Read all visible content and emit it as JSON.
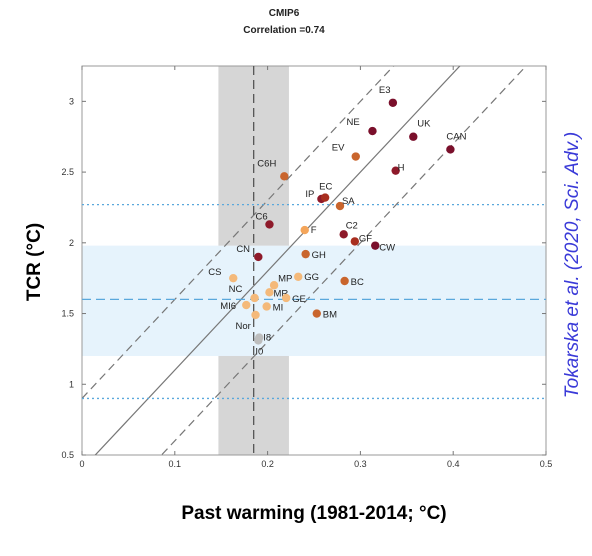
{
  "chart_data": {
    "type": "scatter",
    "title": "CMIP6",
    "subtitle": "Correlation =0.74",
    "xlabel": "Past warming (1981-2014; °C)",
    "ylabel": "TCR (°C)",
    "credit": "Tokarska et al. (2020, Sci. Adv.)",
    "xlim": [
      0,
      0.5
    ],
    "ylim": [
      0.5,
      3.25
    ],
    "xticks": [
      "0",
      "0.1",
      "0.2",
      "0.3",
      "0.4",
      "0.5"
    ],
    "yticks": [
      "0.5",
      "1",
      "1.5",
      "2",
      "2.5",
      "3"
    ],
    "observed_range_x": [
      0.147,
      0.223
    ],
    "observed_best_x": 0.185,
    "constrained_range_y": [
      1.2,
      1.98
    ],
    "constrained_best_y": 1.6,
    "dotted_lines_y": [
      0.9,
      2.27
    ],
    "regression": {
      "x0": 0.0,
      "y0": 0.9,
      "slope": 7.0,
      "offset": 0.5
    },
    "points": [
      {
        "label": "E3",
        "x": 0.335,
        "y": 2.99,
        "color": "#7a0f2b"
      },
      {
        "label": "NE",
        "x": 0.313,
        "y": 2.79,
        "color": "#7a0f2b"
      },
      {
        "label": "UK",
        "x": 0.357,
        "y": 2.75,
        "color": "#7a0f2b"
      },
      {
        "label": "CAN",
        "x": 0.397,
        "y": 2.66,
        "color": "#7a0f2b"
      },
      {
        "label": "EV",
        "x": 0.295,
        "y": 2.61,
        "color": "#c9652d"
      },
      {
        "label": "H",
        "x": 0.338,
        "y": 2.51,
        "color": "#8e1a2a"
      },
      {
        "label": "C6H",
        "x": 0.218,
        "y": 2.47,
        "color": "#c9652d"
      },
      {
        "label": "IP",
        "x": 0.258,
        "y": 2.31,
        "color": "#8e1a2a"
      },
      {
        "label": "EC",
        "x": 0.262,
        "y": 2.32,
        "color": "#a82e1f"
      },
      {
        "label": "SA",
        "x": 0.278,
        "y": 2.26,
        "color": "#c9652d"
      },
      {
        "label": "C6",
        "x": 0.202,
        "y": 2.13,
        "color": "#8e1a2a"
      },
      {
        "label": "F",
        "x": 0.24,
        "y": 2.09,
        "color": "#f4a55a"
      },
      {
        "label": "C2",
        "x": 0.282,
        "y": 2.06,
        "color": "#8e1a2a"
      },
      {
        "label": "GF",
        "x": 0.294,
        "y": 2.01,
        "color": "#a82e1f"
      },
      {
        "label": "CW",
        "x": 0.316,
        "y": 1.98,
        "color": "#7a0f2b"
      },
      {
        "label": "CN",
        "x": 0.19,
        "y": 1.9,
        "color": "#8e1a2a"
      },
      {
        "label": "GH",
        "x": 0.241,
        "y": 1.92,
        "color": "#c9652d"
      },
      {
        "label": "CS",
        "x": 0.163,
        "y": 1.75,
        "color": "#f4b97a"
      },
      {
        "label": "GG",
        "x": 0.233,
        "y": 1.76,
        "color": "#f4b97a"
      },
      {
        "label": "BC",
        "x": 0.283,
        "y": 1.73,
        "color": "#c9652d"
      },
      {
        "label": "MP",
        "x": 0.207,
        "y": 1.7,
        "color": "#f4b97a"
      },
      {
        "label": "MR",
        "x": 0.202,
        "y": 1.65,
        "color": "#f4b97a"
      },
      {
        "label": "NC",
        "x": 0.186,
        "y": 1.61,
        "color": "#f4b97a"
      },
      {
        "label": "GE",
        "x": 0.22,
        "y": 1.61,
        "color": "#f4b97a"
      },
      {
        "label": "MI6",
        "x": 0.177,
        "y": 1.56,
        "color": "#f4b97a"
      },
      {
        "label": "MI",
        "x": 0.199,
        "y": 1.55,
        "color": "#f4b97a"
      },
      {
        "label": "BM",
        "x": 0.253,
        "y": 1.5,
        "color": "#c9652d"
      },
      {
        "label": "Nor",
        "x": 0.187,
        "y": 1.49,
        "color": "#f4b97a"
      },
      {
        "label": "I8",
        "x": 0.191,
        "y": 1.33,
        "color": "#bdbdbd"
      },
      {
        "label": "I0",
        "x": 0.19,
        "y": 1.31,
        "color": "#bdbdbd"
      }
    ]
  }
}
